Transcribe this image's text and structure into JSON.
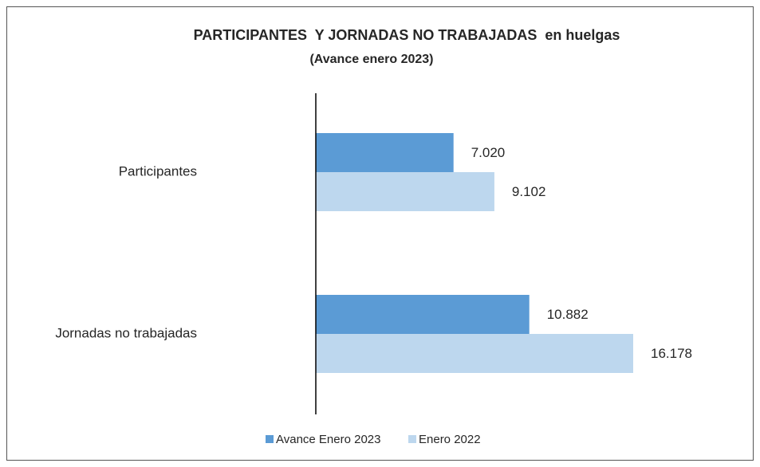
{
  "chart_data": {
    "type": "hbar",
    "title": "PARTICIPANTES  Y JORNADAS NO TRABAJADAS  en huelgas",
    "subtitle": "(Avance enero 2023)",
    "categories": [
      "Participantes",
      "Jornadas no trabajadas"
    ],
    "series": [
      {
        "name": "Avance Enero 2023",
        "color": "#5b9bd5",
        "values": [
          7020,
          10882
        ],
        "value_labels": [
          "7.020",
          "10.882"
        ]
      },
      {
        "name": "Enero 2022",
        "color": "#bdd7ee",
        "values": [
          9102,
          16178
        ],
        "value_labels": [
          "9.102",
          "16.178"
        ]
      }
    ],
    "legend": "bottom"
  }
}
